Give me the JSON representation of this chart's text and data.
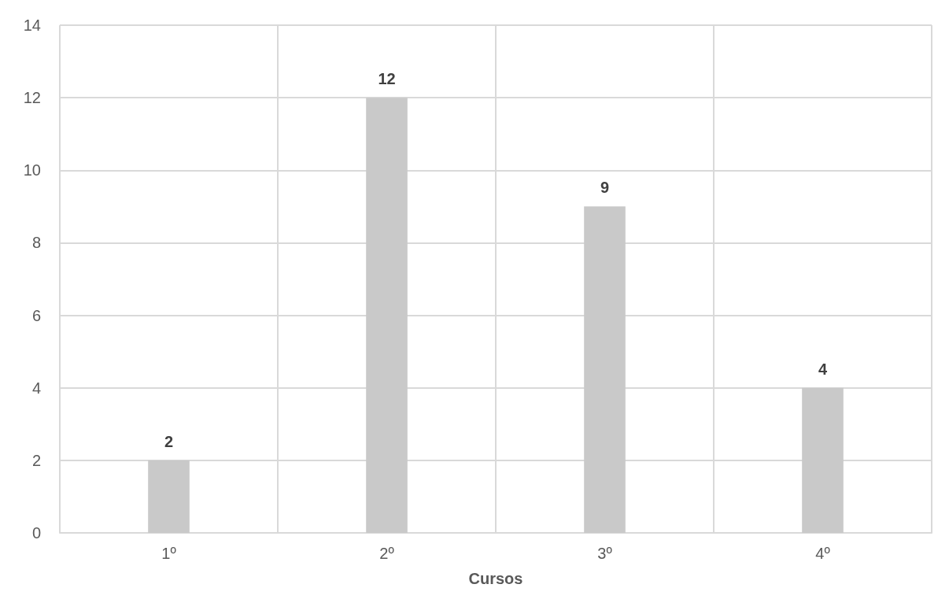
{
  "chart_data": {
    "type": "bar",
    "xlabel": "Cursos",
    "categories": [
      "1º",
      "2º",
      "3º",
      "4º"
    ],
    "values": [
      2,
      12,
      9,
      4
    ],
    "color": "#c9c9c9",
    "ylim": [
      0,
      14
    ],
    "yticks": [
      0,
      2,
      4,
      6,
      8,
      10,
      12,
      14
    ],
    "grid": true,
    "data_labels": true
  }
}
